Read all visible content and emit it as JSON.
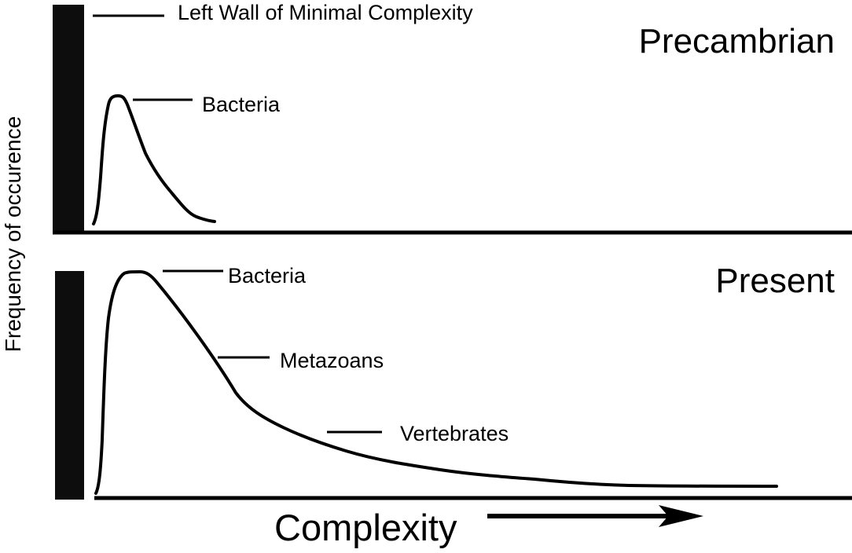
{
  "diagram": {
    "y_axis_label": "Frequency of occurence",
    "x_axis_label": "Complexity",
    "top_panel": {
      "era": "Precambrian",
      "wall_label": "Left Wall of Minimal Complexity",
      "peak_label": "Bacteria"
    },
    "bottom_panel": {
      "era": "Present",
      "labels": [
        "Bacteria",
        "Metazoans",
        "Vertebrates"
      ]
    },
    "colors": {
      "ink": "#000000",
      "wall": "#0d0d0d",
      "background": "#ffffff"
    }
  }
}
